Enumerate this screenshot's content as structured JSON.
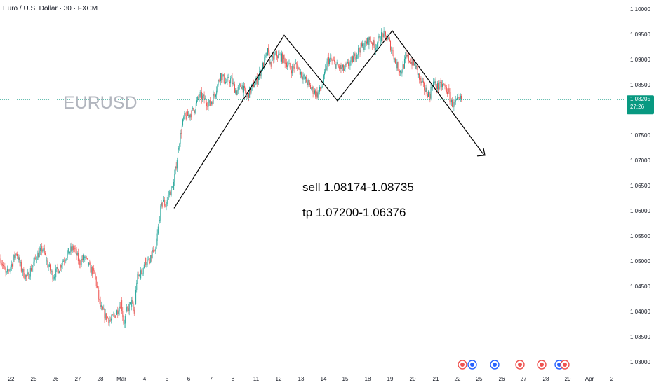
{
  "chart_data": {
    "type": "candlestick",
    "title": "Euro / U.S. Dollar · 30 · FXCM",
    "watermark": "EURUSD",
    "y_ticks": [
      "1.10000",
      "1.09500",
      "1.09000",
      "1.08500",
      "1.08000",
      "1.07500",
      "1.07000",
      "1.06500",
      "1.06000",
      "1.05500",
      "1.05000",
      "1.04500",
      "1.04000",
      "1.03500",
      "1.03000"
    ],
    "ylim": [
      1.0295,
      1.1015
    ],
    "x_ticks": [
      "22",
      "25",
      "26",
      "27",
      "28",
      "Mar",
      "4",
      "5",
      "6",
      "7",
      "8",
      "11",
      "12",
      "13",
      "14",
      "15",
      "18",
      "19",
      "20",
      "21",
      "22",
      "25",
      "26",
      "27",
      "28",
      "29",
      "Apr",
      "2"
    ],
    "last_price": {
      "value": 1.08205,
      "price_text": "1.08205",
      "countdown_text": "27:26"
    },
    "colors": {
      "up": "#26a69a",
      "down": "#ef5350",
      "last": "#089981",
      "axis_text": "#131722",
      "line": "#000000"
    },
    "price_path": [
      [
        0,
        1.0505
      ],
      [
        2,
        1.0472
      ],
      [
        4,
        1.0492
      ],
      [
        6,
        1.0518
      ],
      [
        8,
        1.0482
      ],
      [
        10,
        1.0465
      ],
      [
        12,
        1.049
      ],
      [
        14,
        1.0512
      ],
      [
        16,
        1.0525
      ],
      [
        18,
        1.0492
      ],
      [
        20,
        1.047
      ],
      [
        22,
        1.0484
      ],
      [
        24,
        1.0503
      ],
      [
        26,
        1.0518
      ],
      [
        28,
        1.0526
      ],
      [
        30,
        1.0497
      ],
      [
        32,
        1.0508
      ],
      [
        34,
        1.0486
      ],
      [
        36,
        1.0473
      ],
      [
        37,
        1.044
      ],
      [
        38,
        1.041
      ],
      [
        40,
        1.039
      ],
      [
        42,
        1.0382
      ],
      [
        44,
        1.0395
      ],
      [
        46,
        1.042
      ],
      [
        47,
        1.0375
      ],
      [
        48,
        1.0398
      ],
      [
        50,
        1.0418
      ],
      [
        51,
        1.0395
      ],
      [
        52,
        1.0465
      ],
      [
        54,
        1.0478
      ],
      [
        55,
        1.05
      ],
      [
        57,
        1.0495
      ],
      [
        58,
        1.052
      ],
      [
        59,
        1.051
      ],
      [
        60,
        1.056
      ],
      [
        61,
        1.06
      ],
      [
        62,
        1.062
      ],
      [
        63,
        1.061
      ],
      [
        64,
        1.063
      ],
      [
        66,
        1.065
      ],
      [
        67,
        1.069
      ],
      [
        68,
        1.073
      ],
      [
        69,
        1.076
      ],
      [
        70,
        1.0785
      ],
      [
        72,
        1.079
      ],
      [
        74,
        1.0802
      ],
      [
        76,
        1.083
      ],
      [
        78,
        1.082
      ],
      [
        80,
        1.081
      ],
      [
        82,
        1.0835
      ],
      [
        84,
        1.087
      ],
      [
        86,
        1.0855
      ],
      [
        88,
        1.086
      ],
      [
        90,
        1.0835
      ],
      [
        92,
        1.085
      ],
      [
        94,
        1.0825
      ],
      [
        96,
        1.0845
      ],
      [
        98,
        1.086
      ],
      [
        100,
        1.0885
      ],
      [
        102,
        1.0915
      ],
      [
        103,
        1.089
      ],
      [
        105,
        1.091
      ],
      [
        107,
        1.0905
      ],
      [
        109,
        1.0895
      ],
      [
        111,
        1.088
      ],
      [
        113,
        1.089
      ],
      [
        115,
        1.087
      ],
      [
        117,
        1.0855
      ],
      [
        119,
        1.084
      ],
      [
        121,
        1.083
      ],
      [
        123,
        1.085
      ],
      [
        125,
        1.09
      ],
      [
        127,
        1.0895
      ],
      [
        129,
        1.0885
      ],
      [
        131,
        1.088
      ],
      [
        133,
        1.089
      ],
      [
        135,
        1.0905
      ],
      [
        137,
        1.092
      ],
      [
        139,
        1.093
      ],
      [
        141,
        1.094
      ],
      [
        143,
        1.0925
      ],
      [
        145,
        1.0945
      ],
      [
        146,
        1.095
      ],
      [
        148,
        1.094
      ],
      [
        150,
        1.091
      ],
      [
        151,
        1.089
      ],
      [
        153,
        1.0875
      ],
      [
        155,
        1.0905
      ],
      [
        157,
        1.0895
      ],
      [
        159,
        1.088
      ],
      [
        160,
        1.086
      ],
      [
        162,
        1.084
      ],
      [
        164,
        1.083
      ],
      [
        165,
        1.0855
      ],
      [
        167,
        1.0845
      ],
      [
        169,
        1.085
      ],
      [
        171,
        1.0835
      ],
      [
        172,
        1.0815
      ],
      [
        173,
        1.081
      ],
      [
        175,
        1.0818
      ],
      [
        176,
        1.0822
      ]
    ],
    "drawing": {
      "zigzag": [
        [
          1.0605,
          "5.1"
        ],
        [
          1.0948,
          "12.4"
        ],
        [
          1.0818,
          "14.7"
        ],
        [
          1.0957,
          "19.2"
        ],
        [
          1.071,
          "24.7"
        ]
      ],
      "annotations": [
        "sell  1.08174-1.08735",
        "tp  1.07200-1.06376"
      ]
    }
  }
}
